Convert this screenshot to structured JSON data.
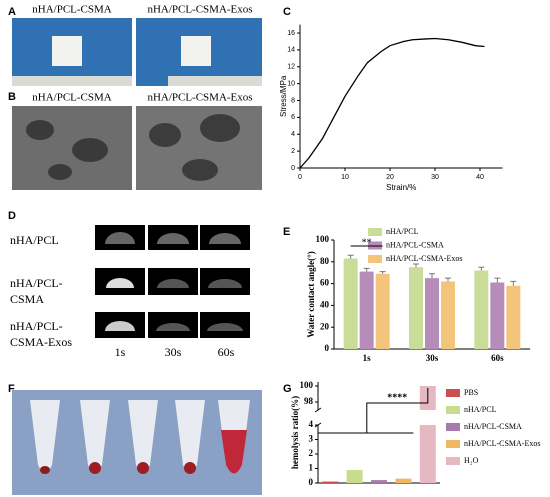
{
  "panel_labels": [
    "A",
    "B",
    "C",
    "D",
    "E",
    "F",
    "G"
  ],
  "panel_a": {
    "titles": [
      "nHA/PCL-CSMA",
      "nHA/PCL-CSMA-Exos"
    ]
  },
  "panel_b": {
    "titles": [
      "nHA/PCL-CSMA",
      "nHA/PCL-CSMA-Exos"
    ]
  },
  "panel_d": {
    "rows": [
      "nHA/PCL",
      "nHA/PCL-CSMA",
      "nHA/PCL-CSMA-Exos"
    ],
    "times": [
      "1s",
      "30s",
      "60s"
    ]
  },
  "chart_data": [
    {
      "type": "line",
      "xlabel": "Strain/%",
      "ylabel": "Stress/MPa",
      "x": [
        0,
        2,
        5,
        8,
        10,
        13,
        15,
        18,
        20,
        23,
        25,
        28,
        30,
        33,
        36,
        39,
        41
      ],
      "series": [
        {
          "color": "#000000",
          "values": [
            0,
            1.2,
            3.5,
            6.5,
            8.5,
            11,
            12.5,
            13.8,
            14.5,
            15,
            15.2,
            15.3,
            15.35,
            15.2,
            14.9,
            14.5,
            14.4
          ]
        }
      ],
      "xlim": [
        0,
        45
      ],
      "ylim": [
        0,
        17
      ],
      "xticks": [
        0,
        10,
        20,
        30,
        40
      ],
      "yticks": [
        0,
        2,
        4,
        6,
        8,
        10,
        12,
        14,
        16
      ]
    },
    {
      "type": "bar",
      "ylabel": "Water contact angle(°)",
      "categories": [
        "1s",
        "30s",
        "60s"
      ],
      "series": [
        {
          "name": "nHA/PCL",
          "color": "#c9dc98",
          "values": [
            83,
            75,
            72
          ],
          "errors": [
            3,
            3,
            3
          ]
        },
        {
          "name": "nHA/PCL-CSMA",
          "color": "#b58db8",
          "values": [
            71,
            65,
            61
          ],
          "errors": [
            3,
            4,
            4
          ]
        },
        {
          "name": "nHA/PCL-CSMA-Exos",
          "color": "#f2c47c",
          "values": [
            69,
            62,
            58
          ],
          "errors": [
            2,
            3,
            4
          ]
        }
      ],
      "ylim": [
        0,
        100
      ],
      "yticks": [
        0,
        20,
        40,
        60,
        80,
        100
      ],
      "annotation": "**",
      "legend": "top-right"
    },
    {
      "type": "bar",
      "ylabel": "hemolysis ratio(%)",
      "series": [
        {
          "name": "PBS",
          "color": "#c9524e",
          "values": [
            0.1
          ]
        },
        {
          "name": "nHA/PCL",
          "color": "#c8dc8e",
          "values": [
            0.9
          ]
        },
        {
          "name": "nHA/PCL-CSMA",
          "color": "#a57cab",
          "values": [
            0.2
          ]
        },
        {
          "name": "nHA/PCL-CSMA-Exos",
          "color": "#f0b862",
          "values": [
            0.3
          ]
        },
        {
          "name": "H₂O",
          "color": "#e6b9c2",
          "values": [
            100
          ]
        }
      ],
      "ylim": [
        0,
        4
      ],
      "yticks": [
        0,
        1,
        2,
        3,
        4
      ],
      "ylim_upper": [
        97,
        100.5
      ],
      "yticks_upper": [
        98,
        100
      ],
      "axis_break": true,
      "annotation": "****",
      "legend": "right"
    }
  ]
}
